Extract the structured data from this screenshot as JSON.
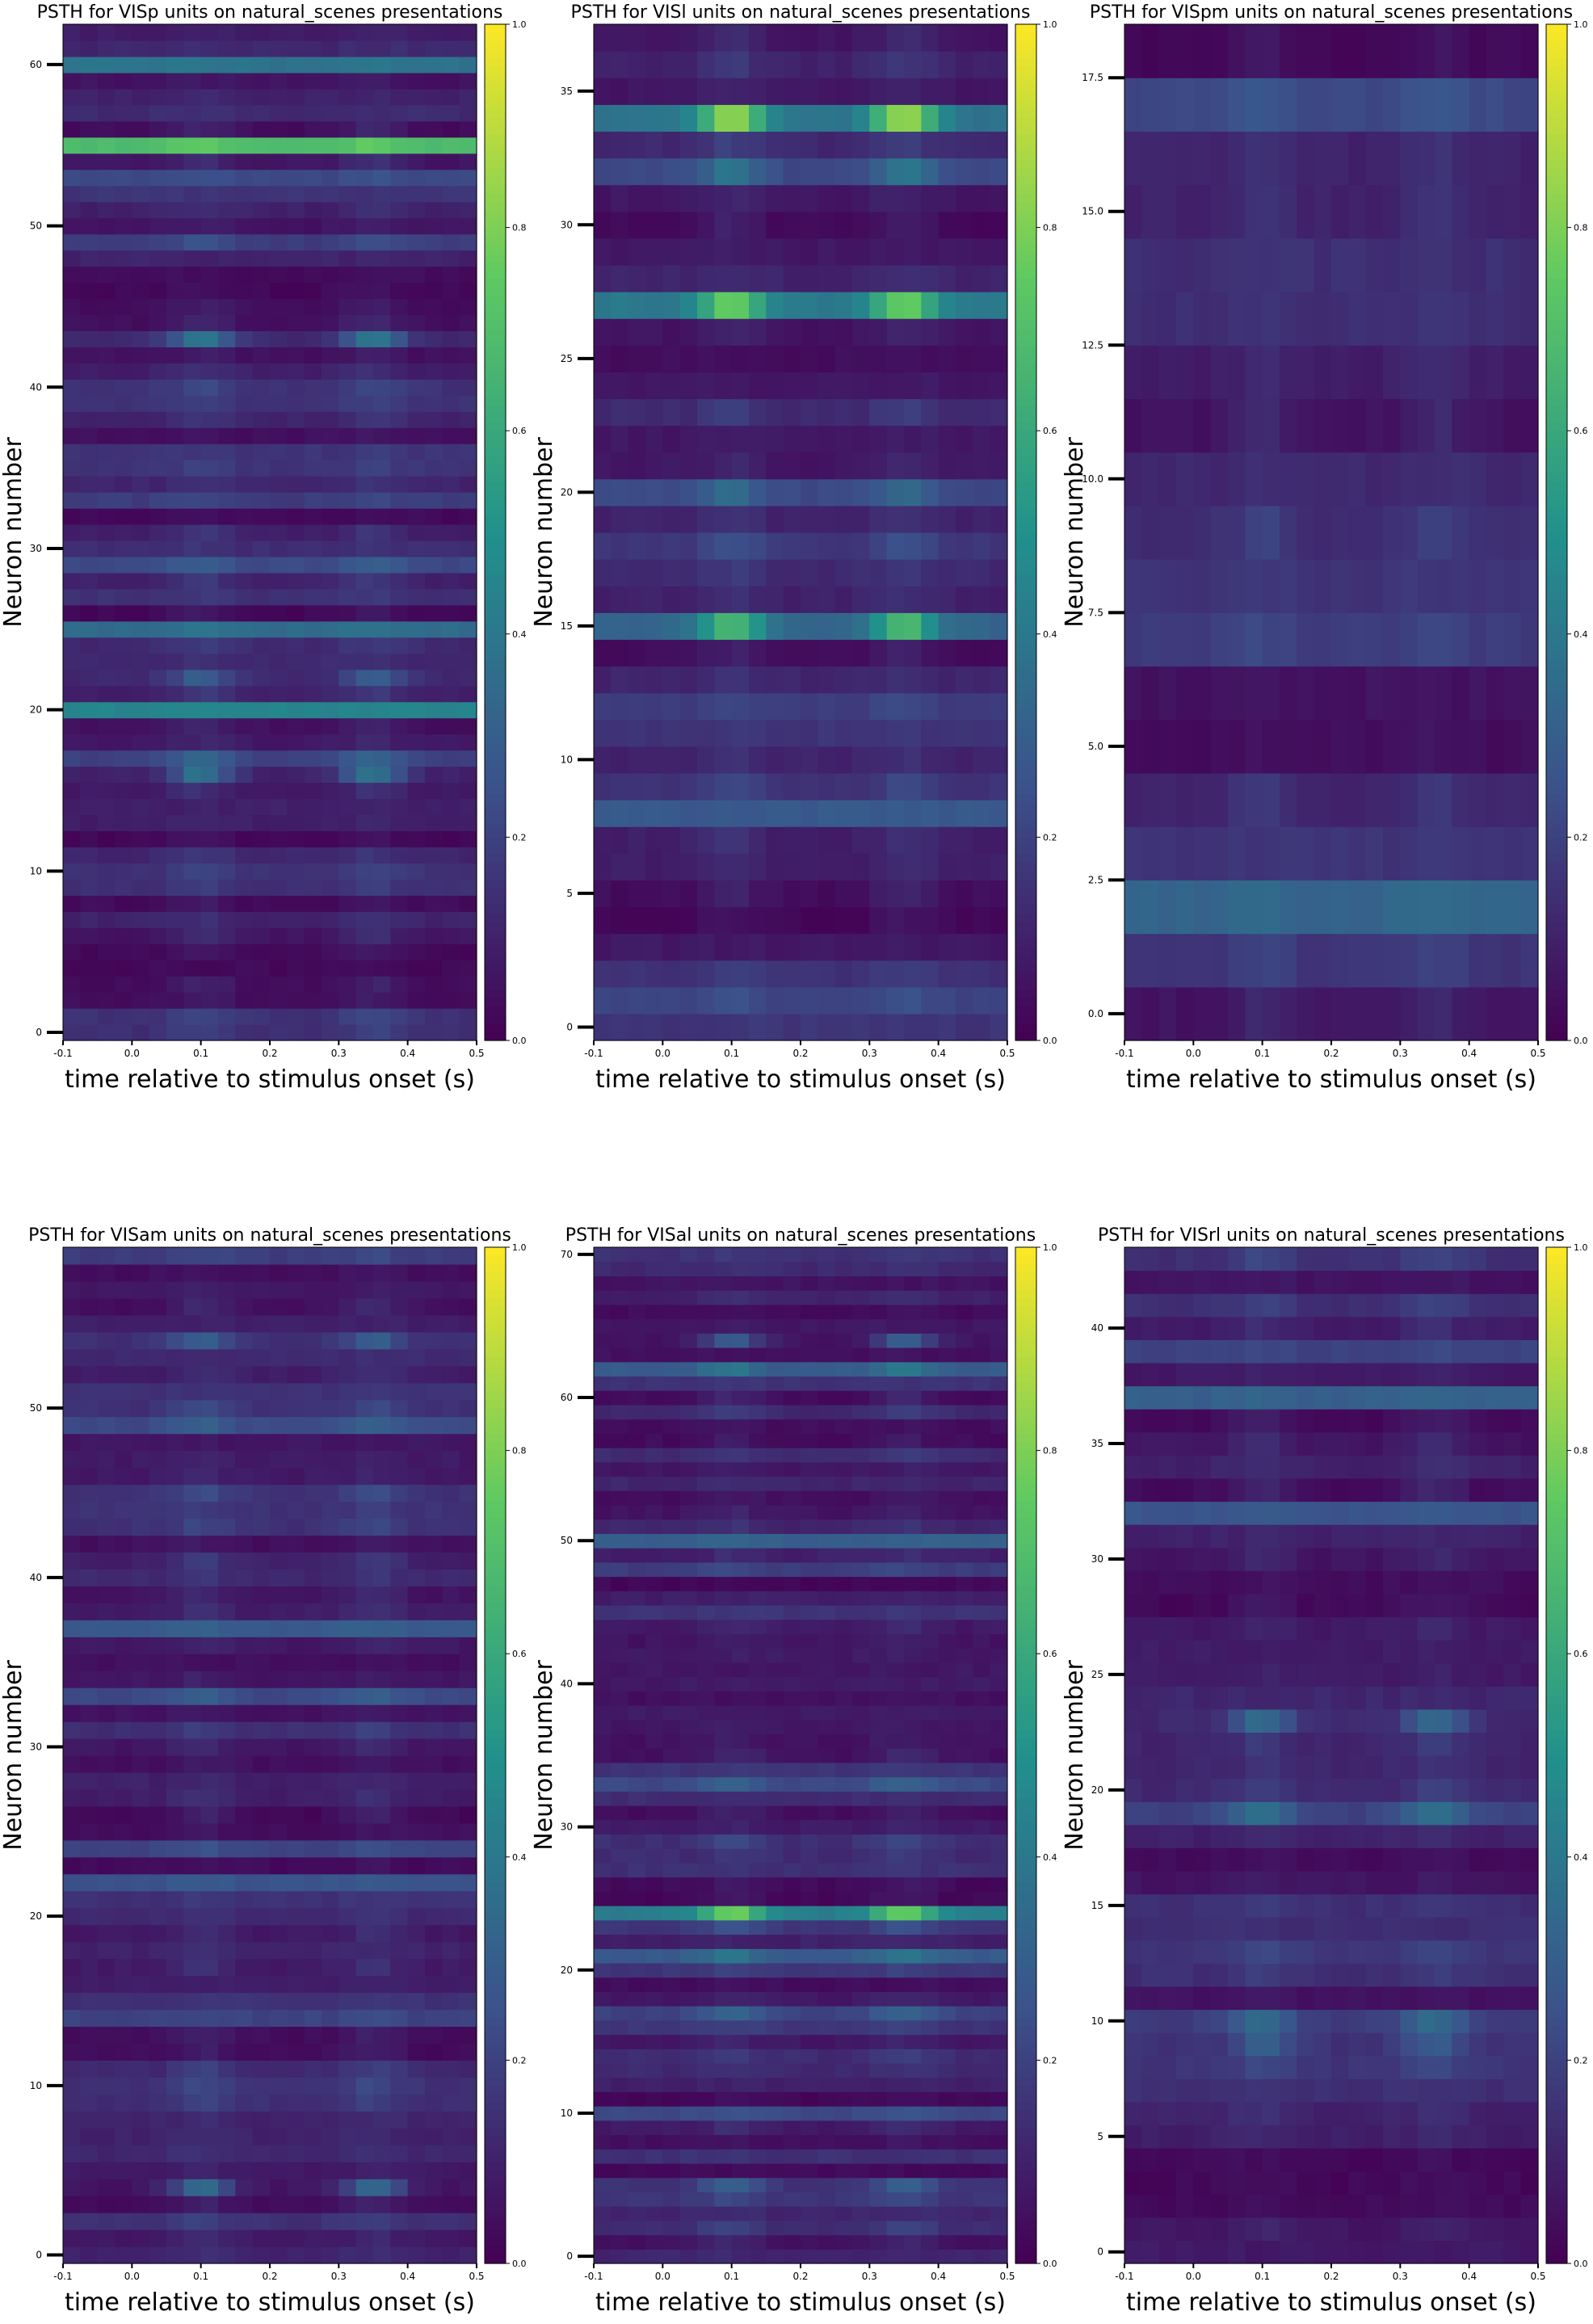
{
  "figure": {
    "colormap": "viridis",
    "colormap_stops": [
      "#440154",
      "#3b528b",
      "#21918c",
      "#5ec962",
      "#fde725"
    ]
  },
  "chart_data": [
    {
      "type": "heatmap",
      "title": "PSTH for VISp units on natural_scenes presentations",
      "xlabel": "time relative to stimulus onset (s)",
      "ylabel": "Neuron number",
      "xlim": [
        -0.1,
        0.5
      ],
      "ylim": [
        -0.5,
        62.5
      ],
      "n_units": 63,
      "xticks": [
        "-0.1",
        "0.0",
        "0.1",
        "0.2",
        "0.3",
        "0.4",
        "0.5"
      ],
      "yticks": [
        0,
        10,
        20,
        30,
        40,
        50,
        60
      ],
      "ytick_labels": [
        "0",
        "10",
        "20",
        "30",
        "40",
        "50",
        "60"
      ],
      "colorbar_ticks": [
        "0.0",
        "0.2",
        "0.4",
        "0.6",
        "0.8",
        "1.0"
      ],
      "colorbar_range": [
        0.0,
        1.0
      ],
      "notable_units": [
        {
          "unit": 55,
          "baseline": 0.68,
          "peak": 0.75
        },
        {
          "unit": 60,
          "baseline": 0.38,
          "peak": 0.4
        },
        {
          "unit": 20,
          "baseline": 0.45,
          "peak": 0.45
        },
        {
          "unit": 25,
          "baseline": 0.35,
          "peak": 0.38
        },
        {
          "unit": 43,
          "baseline": 0.12,
          "peak": 0.4
        },
        {
          "unit": 17,
          "baseline": 0.2,
          "peak": 0.32
        },
        {
          "unit": 16,
          "baseline": 0.1,
          "peak": 0.38
        },
        {
          "unit": 29,
          "baseline": 0.22,
          "peak": 0.3
        },
        {
          "unit": 53,
          "baseline": 0.22,
          "peak": 0.25
        },
        {
          "unit": 49,
          "baseline": 0.18,
          "peak": 0.25
        },
        {
          "unit": 40,
          "baseline": 0.15,
          "peak": 0.22
        },
        {
          "unit": 33,
          "baseline": 0.18,
          "peak": 0.22
        },
        {
          "unit": 22,
          "baseline": 0.12,
          "peak": 0.3
        },
        {
          "unit": 9,
          "baseline": 0.14,
          "peak": 0.18
        }
      ]
    },
    {
      "type": "heatmap",
      "title": "PSTH for VISl units on natural_scenes presentations",
      "xlabel": "time relative to stimulus onset (s)",
      "ylabel": "Neuron number",
      "xlim": [
        -0.1,
        0.5
      ],
      "ylim": [
        -0.5,
        37.5
      ],
      "n_units": 38,
      "xticks": [
        "-0.1",
        "0.0",
        "0.1",
        "0.2",
        "0.3",
        "0.4",
        "0.5"
      ],
      "yticks": [
        0,
        5,
        10,
        15,
        20,
        25,
        30,
        35
      ],
      "ytick_labels": [
        "0",
        "5",
        "10",
        "15",
        "20",
        "25",
        "30",
        "35"
      ],
      "colorbar_ticks": [
        "0.0",
        "0.2",
        "0.4",
        "0.6",
        "0.8",
        "1.0"
      ],
      "colorbar_range": [
        0.0,
        1.0
      ],
      "notable_units": [
        {
          "unit": 34,
          "baseline": 0.38,
          "peak": 0.85
        },
        {
          "unit": 27,
          "baseline": 0.4,
          "peak": 0.78
        },
        {
          "unit": 15,
          "baseline": 0.32,
          "peak": 0.68
        },
        {
          "unit": 32,
          "baseline": 0.22,
          "peak": 0.4
        },
        {
          "unit": 20,
          "baseline": 0.22,
          "peak": 0.35
        },
        {
          "unit": 8,
          "baseline": 0.28,
          "peak": 0.28
        },
        {
          "unit": 1,
          "baseline": 0.2,
          "peak": 0.25
        },
        {
          "unit": 12,
          "baseline": 0.18,
          "peak": 0.22
        },
        {
          "unit": 18,
          "baseline": 0.16,
          "peak": 0.25
        }
      ]
    },
    {
      "type": "heatmap",
      "title": "PSTH for VISpm units on natural_scenes presentations",
      "xlabel": "time relative to stimulus onset (s)",
      "ylabel": "Neuron number",
      "xlim": [
        -0.1,
        0.5
      ],
      "ylim": [
        -0.5,
        18.5
      ],
      "n_units": 19,
      "xticks": [
        "-0.1",
        "0.0",
        "0.1",
        "0.2",
        "0.3",
        "0.4",
        "0.5"
      ],
      "yticks": [
        0,
        2.5,
        5,
        7.5,
        10,
        12.5,
        15,
        17.5
      ],
      "ytick_labels": [
        "0.0",
        "2.5",
        "5.0",
        "7.5",
        "10.0",
        "12.5",
        "15.0",
        "17.5"
      ],
      "colorbar_ticks": [
        "0.0",
        "0.2",
        "0.4",
        "0.6",
        "0.8",
        "1.0"
      ],
      "colorbar_range": [
        0.0,
        1.0
      ],
      "notable_units": [
        {
          "unit": 2,
          "baseline": 0.32,
          "peak": 0.35
        },
        {
          "unit": 17,
          "baseline": 0.22,
          "peak": 0.28
        },
        {
          "unit": 7,
          "baseline": 0.18,
          "peak": 0.22
        },
        {
          "unit": 1,
          "baseline": 0.16,
          "peak": 0.2
        },
        {
          "unit": 9,
          "baseline": 0.13,
          "peak": 0.2
        },
        {
          "unit": 13,
          "baseline": 0.14,
          "peak": 0.16
        },
        {
          "unit": 15,
          "baseline": 0.1,
          "peak": 0.15
        },
        {
          "unit": 10,
          "baseline": 0.12,
          "peak": 0.14
        }
      ]
    },
    {
      "type": "heatmap",
      "title": "PSTH for VISam units on natural_scenes presentations",
      "xlabel": "time relative to stimulus onset (s)",
      "ylabel": "Neuron number",
      "xlim": [
        -0.1,
        0.5
      ],
      "ylim": [
        -0.5,
        59.5
      ],
      "n_units": 60,
      "xticks": [
        "-0.1",
        "0.0",
        "0.1",
        "0.2",
        "0.3",
        "0.4",
        "0.5"
      ],
      "yticks": [
        0,
        10,
        20,
        30,
        40,
        50
      ],
      "ytick_labels": [
        "0",
        "10",
        "20",
        "30",
        "40",
        "50"
      ],
      "colorbar_ticks": [
        "0.0",
        "0.2",
        "0.4",
        "0.6",
        "0.8",
        "1.0"
      ],
      "colorbar_range": [
        0.0,
        1.0
      ],
      "notable_units": [
        {
          "unit": 37,
          "baseline": 0.28,
          "peak": 0.3
        },
        {
          "unit": 49,
          "baseline": 0.22,
          "peak": 0.3
        },
        {
          "unit": 54,
          "baseline": 0.14,
          "peak": 0.3
        },
        {
          "unit": 33,
          "baseline": 0.22,
          "peak": 0.3
        },
        {
          "unit": 22,
          "baseline": 0.25,
          "peak": 0.28
        },
        {
          "unit": 24,
          "baseline": 0.2,
          "peak": 0.25
        },
        {
          "unit": 4,
          "baseline": 0.06,
          "peak": 0.35
        },
        {
          "unit": 14,
          "baseline": 0.2,
          "peak": 0.22
        },
        {
          "unit": 59,
          "baseline": 0.18,
          "peak": 0.22
        },
        {
          "unit": 44,
          "baseline": 0.15,
          "peak": 0.18
        },
        {
          "unit": 10,
          "baseline": 0.14,
          "peak": 0.22
        }
      ]
    },
    {
      "type": "heatmap",
      "title": "PSTH for VISal units on natural_scenes presentations",
      "xlabel": "time relative to stimulus onset (s)",
      "ylabel": "Neuron number",
      "xlim": [
        -0.1,
        0.5
      ],
      "ylim": [
        -0.5,
        70.5
      ],
      "n_units": 71,
      "xticks": [
        "-0.1",
        "0.0",
        "0.1",
        "0.2",
        "0.3",
        "0.4",
        "0.5"
      ],
      "yticks": [
        0,
        10,
        20,
        30,
        40,
        50,
        60,
        70
      ],
      "ytick_labels": [
        "0",
        "10",
        "20",
        "30",
        "40",
        "50",
        "60",
        "70"
      ],
      "colorbar_ticks": [
        "0.0",
        "0.2",
        "0.4",
        "0.6",
        "0.8",
        "1.0"
      ],
      "colorbar_range": [
        0.0,
        1.0
      ],
      "notable_units": [
        {
          "unit": 24,
          "baseline": 0.42,
          "peak": 0.78
        },
        {
          "unit": 62,
          "baseline": 0.28,
          "peak": 0.4
        },
        {
          "unit": 50,
          "baseline": 0.3,
          "peak": 0.32
        },
        {
          "unit": 21,
          "baseline": 0.28,
          "peak": 0.4
        },
        {
          "unit": 33,
          "baseline": 0.22,
          "peak": 0.32
        },
        {
          "unit": 17,
          "baseline": 0.2,
          "peak": 0.32
        },
        {
          "unit": 10,
          "baseline": 0.22,
          "peak": 0.25
        },
        {
          "unit": 5,
          "baseline": 0.15,
          "peak": 0.3
        },
        {
          "unit": 48,
          "baseline": 0.18,
          "peak": 0.22
        },
        {
          "unit": 23,
          "baseline": 0.16,
          "peak": 0.25
        },
        {
          "unit": 29,
          "baseline": 0.14,
          "peak": 0.22
        },
        {
          "unit": 64,
          "baseline": 0.06,
          "peak": 0.3
        }
      ]
    },
    {
      "type": "heatmap",
      "title": "PSTH for VISrl units on natural_scenes presentations",
      "xlabel": "time relative to stimulus onset (s)",
      "ylabel": "Neuron number",
      "xlim": [
        -0.1,
        0.5
      ],
      "ylim": [
        -0.5,
        43.5
      ],
      "n_units": 44,
      "xticks": [
        "-0.1",
        "0.0",
        "0.1",
        "0.2",
        "0.3",
        "0.4",
        "0.5"
      ],
      "yticks": [
        0,
        5,
        10,
        15,
        20,
        25,
        30,
        35,
        40
      ],
      "ytick_labels": [
        "0",
        "5",
        "10",
        "15",
        "20",
        "25",
        "30",
        "35",
        "40"
      ],
      "colorbar_ticks": [
        "0.0",
        "0.2",
        "0.4",
        "0.6",
        "0.8",
        "1.0"
      ],
      "colorbar_range": [
        0.0,
        1.0
      ],
      "notable_units": [
        {
          "unit": 37,
          "baseline": 0.3,
          "peak": 0.32
        },
        {
          "unit": 32,
          "baseline": 0.26,
          "peak": 0.28
        },
        {
          "unit": 23,
          "baseline": 0.12,
          "peak": 0.35
        },
        {
          "unit": 19,
          "baseline": 0.2,
          "peak": 0.38
        },
        {
          "unit": 10,
          "baseline": 0.18,
          "peak": 0.35
        },
        {
          "unit": 9,
          "baseline": 0.15,
          "peak": 0.3
        },
        {
          "unit": 39,
          "baseline": 0.2,
          "peak": 0.22
        },
        {
          "unit": 13,
          "baseline": 0.16,
          "peak": 0.22
        },
        {
          "unit": 41,
          "baseline": 0.14,
          "peak": 0.2
        },
        {
          "unit": 15,
          "baseline": 0.14,
          "peak": 0.18
        }
      ]
    }
  ]
}
